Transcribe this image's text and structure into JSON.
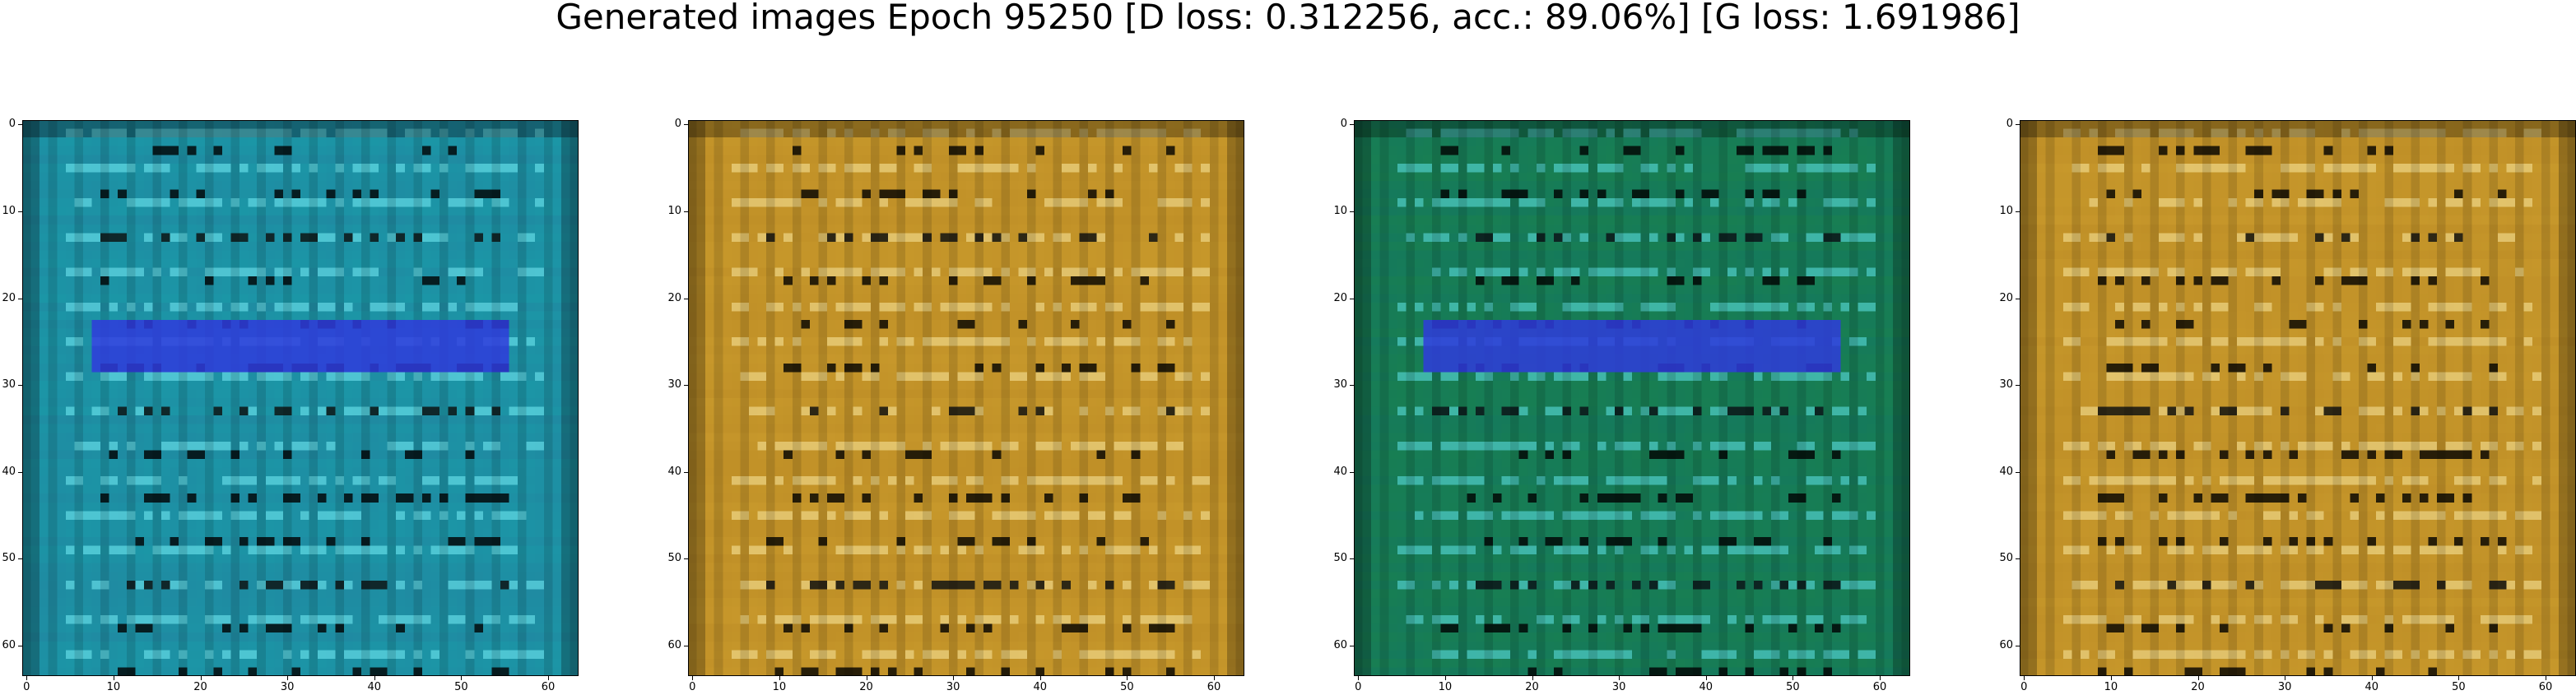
{
  "figure": {
    "title": "Generated images Epoch 95250 [D loss: 0.312256, acc.: 89.06%] [G loss: 1.691986]"
  },
  "panels": [
    {
      "palette": "cyan-blue",
      "band": "blue-band"
    },
    {
      "palette": "golden-ochre",
      "band": "none"
    },
    {
      "palette": "green-cyan",
      "band": "blue-band"
    },
    {
      "palette": "golden-ochre",
      "band": "none"
    }
  ],
  "axes": {
    "xticks": [
      "0",
      "10",
      "20",
      "30",
      "40",
      "50",
      "60"
    ],
    "yticks": [
      "0",
      "10",
      "20",
      "30",
      "40",
      "50",
      "60"
    ],
    "extent": [
      0,
      64
    ]
  },
  "colors": {
    "cyan": "#1a9aa8",
    "blue": "#2f3bdc",
    "gold": "#c99a2c",
    "green": "#1f8a3a",
    "dark": "#0a1a18"
  }
}
